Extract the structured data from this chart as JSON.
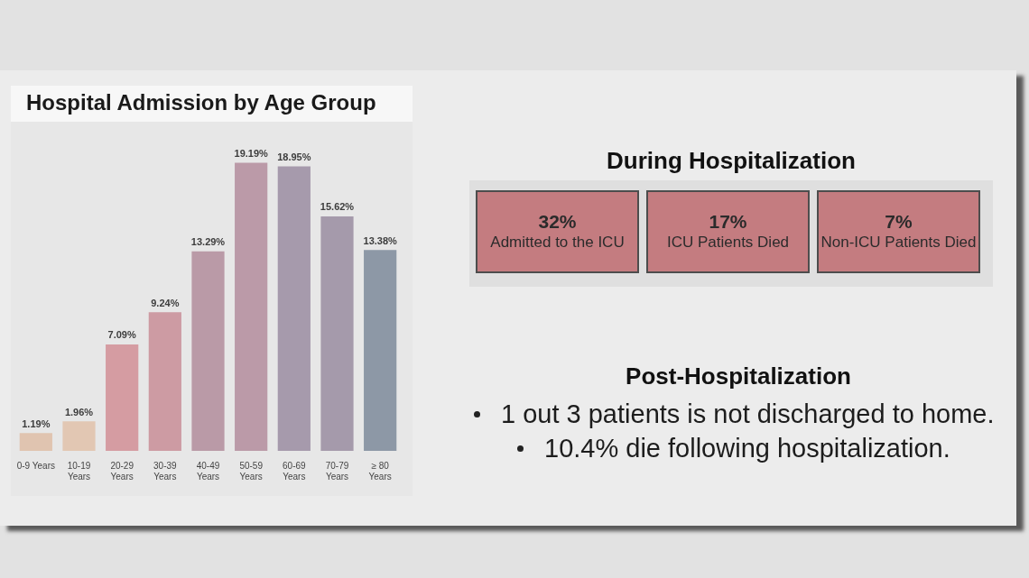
{
  "chart_data": [
    {
      "type": "bar",
      "title": "Hospital Admission by Age Group",
      "categories": [
        "0-9 Years",
        "10-19 Years",
        "20-29 Years",
        "30-39 Years",
        "40-49 Years",
        "50-59 Years",
        "60-69 Years",
        "70-79 Years",
        "≥ 80 Years"
      ],
      "values": [
        1.19,
        1.96,
        7.09,
        9.24,
        13.29,
        19.19,
        18.95,
        15.62,
        13.38
      ],
      "colors": [
        "#e0c4b0",
        "#e2c7b3",
        "#d59ca2",
        "#cd9ba3",
        "#ba9aa7",
        "#bb9aa8",
        "#a69aac",
        "#a59aab",
        "#8d98a6"
      ],
      "value_labels": [
        "1.19%",
        "1.96%",
        "7.09%",
        "9.24%",
        "13.29%",
        "19.19%",
        "18.95%",
        "15.62%",
        "13.38%"
      ],
      "tick_labels": "x"
    },
    {
      "type": "other",
      "title": "During Hospitalization",
      "annotations": [
        "32%",
        "Admitted to the ICU",
        "17%",
        "ICU Patients Died",
        "7%",
        "Non-ICU Patients Died"
      ]
    },
    {
      "type": "other",
      "title": "Post-Hospitalization",
      "annotations": [
        "1 out 3 patients is not discharged to home.",
        "10.4% die following hospitalization."
      ]
    }
  ]
}
